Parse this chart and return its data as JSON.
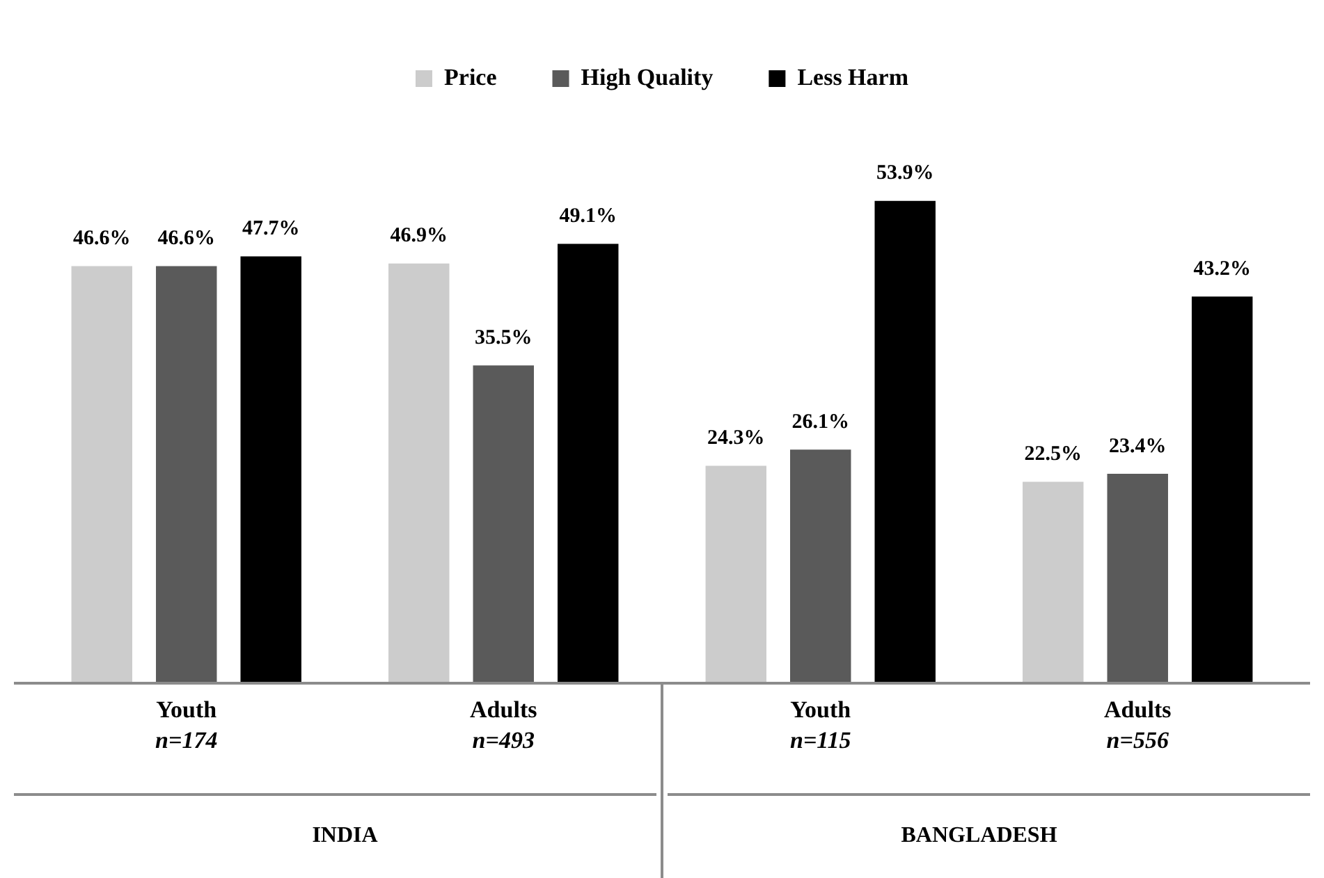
{
  "chart_data": {
    "type": "bar",
    "categories": [
      "Youth\nn=174",
      "Adults\nn=493",
      "Youth\nn=115",
      "Adults\nn=556"
    ],
    "series": [
      {
        "name": "Price",
        "color": "#cccccc",
        "values": [
          46.6,
          46.9,
          24.3,
          22.5
        ],
        "value_labels": [
          "46.6%",
          "46.9%",
          "24.3%",
          "22.5%"
        ]
      },
      {
        "name": "High Quality",
        "color": "#5a5a5a",
        "values": [
          46.6,
          35.5,
          26.1,
          23.4
        ],
        "value_labels": [
          "46.6%",
          "35.5%",
          "26.1%",
          "23.4%"
        ]
      },
      {
        "name": "Less Harm",
        "color": "#000000",
        "values": [
          47.7,
          49.1,
          53.9,
          43.2
        ],
        "value_labels": [
          "47.7%",
          "49.1%",
          "53.9%",
          "43.2%"
        ]
      }
    ],
    "annotations": [
      "INDIA",
      "BANGLADESH"
    ],
    "legend": "top"
  }
}
